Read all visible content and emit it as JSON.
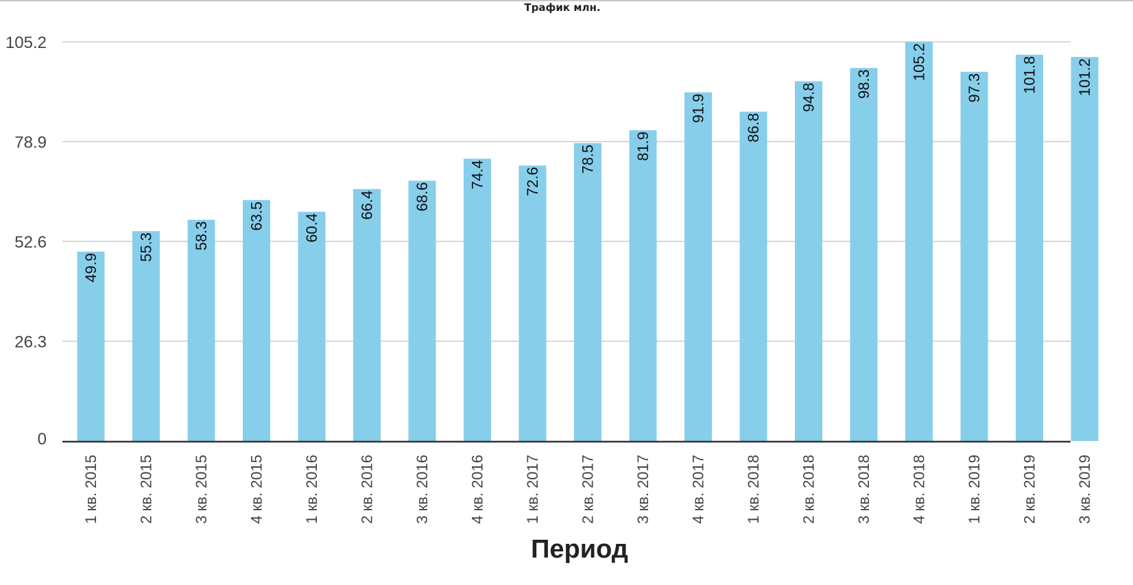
{
  "chart_data": {
    "type": "bar",
    "title": "Трафик млн.",
    "xlabel": "Период",
    "ylabel": "",
    "ylim": [
      0,
      105.2
    ],
    "yticks": [
      0,
      26.3,
      52.6,
      78.9,
      105.2
    ],
    "ytick_labels": [
      "0",
      "26.3",
      "52.6",
      "78.9",
      "105.2"
    ],
    "categories": [
      "1 кв. 2015",
      "2 кв. 2015",
      "3 кв. 2015",
      "4 кв. 2015",
      "1 кв. 2016",
      "2 кв. 2016",
      "3 кв. 2016",
      "4 кв. 2016",
      "1 кв. 2017",
      "2 кв. 2017",
      "3 кв. 2017",
      "4 кв. 2017",
      "1 кв. 2018",
      "2 кв. 2018",
      "3 кв. 2018",
      "4 кв. 2018",
      "1 кв. 2019",
      "2 кв. 2019",
      "3 кв. 2019"
    ],
    "values": [
      49.9,
      55.3,
      58.3,
      63.5,
      60.4,
      66.4,
      68.6,
      74.4,
      72.6,
      78.5,
      81.9,
      91.9,
      86.8,
      94.8,
      98.3,
      105.2,
      97.3,
      101.8,
      101.2
    ],
    "value_labels": [
      "49.9",
      "55.3",
      "58.3",
      "63.5",
      "60.4",
      "66.4",
      "68.6",
      "74.4",
      "72.6",
      "78.5",
      "81.9",
      "91.9",
      "86.8",
      "94.8",
      "98.3",
      "105.2",
      "97.3",
      "101.8",
      "101.2"
    ],
    "bar_color": "#87CEEB",
    "grid": true,
    "legend": false
  }
}
